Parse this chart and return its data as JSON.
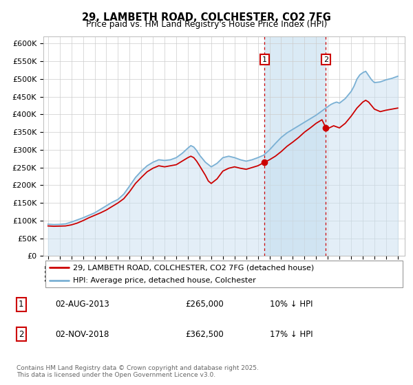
{
  "title": "29, LAMBETH ROAD, COLCHESTER, CO2 7FG",
  "subtitle": "Price paid vs. HM Land Registry's House Price Index (HPI)",
  "ylim": [
    0,
    620000
  ],
  "yticks": [
    0,
    50000,
    100000,
    150000,
    200000,
    250000,
    300000,
    350000,
    400000,
    450000,
    500000,
    550000,
    600000
  ],
  "sale1_date": 2013.58,
  "sale1_price": 265000,
  "sale2_date": 2018.83,
  "sale2_price": 362500,
  "hpi_color": "#7ab0d4",
  "hpi_fill_color": "#c8dff0",
  "price_color": "#cc0000",
  "shaded_color": "#daeaf5",
  "dashed_color": "#cc0000",
  "annotation_box_color": "#cc0000",
  "legend_label_price": "29, LAMBETH ROAD, COLCHESTER, CO2 7FG (detached house)",
  "legend_label_hpi": "HPI: Average price, detached house, Colchester",
  "table_row1": [
    "1",
    "02-AUG-2013",
    "£265,000",
    "10% ↓ HPI"
  ],
  "table_row2": [
    "2",
    "02-NOV-2018",
    "£362,500",
    "17% ↓ HPI"
  ],
  "footnote": "Contains HM Land Registry data © Crown copyright and database right 2025.\nThis data is licensed under the Open Government Licence v3.0.",
  "background_color": "#ffffff",
  "grid_color": "#cccccc",
  "hpi_points": {
    "1995.0": 90000,
    "1995.5": 89000,
    "1996.0": 89500,
    "1996.5": 91000,
    "1997.0": 96000,
    "1997.5": 102000,
    "1998.0": 108000,
    "1998.5": 115000,
    "1999.0": 122000,
    "1999.5": 132000,
    "2000.0": 142000,
    "2000.5": 152000,
    "2001.0": 160000,
    "2001.5": 175000,
    "2002.0": 198000,
    "2002.5": 222000,
    "2003.0": 240000,
    "2003.5": 255000,
    "2004.0": 265000,
    "2004.5": 272000,
    "2005.0": 270000,
    "2005.5": 272000,
    "2006.0": 278000,
    "2006.5": 290000,
    "2007.0": 305000,
    "2007.25": 312000,
    "2007.5": 308000,
    "2007.75": 298000,
    "2008.0": 285000,
    "2008.5": 265000,
    "2009.0": 252000,
    "2009.5": 262000,
    "2010.0": 278000,
    "2010.5": 282000,
    "2011.0": 278000,
    "2011.5": 272000,
    "2012.0": 268000,
    "2012.5": 272000,
    "2013.0": 278000,
    "2013.5": 285000,
    "2014.0": 300000,
    "2014.5": 318000,
    "2015.0": 335000,
    "2015.5": 348000,
    "2016.0": 358000,
    "2016.5": 368000,
    "2017.0": 378000,
    "2017.5": 388000,
    "2018.0": 398000,
    "2018.5": 410000,
    "2018.83": 418000,
    "2019.0": 422000,
    "2019.25": 428000,
    "2019.5": 432000,
    "2019.75": 435000,
    "2020.0": 432000,
    "2020.5": 445000,
    "2021.0": 465000,
    "2021.25": 480000,
    "2021.5": 500000,
    "2021.75": 512000,
    "2022.0": 518000,
    "2022.25": 522000,
    "2022.5": 510000,
    "2022.75": 498000,
    "2023.0": 490000,
    "2023.5": 492000,
    "2024.0": 498000,
    "2024.5": 502000,
    "2025.0": 508000
  },
  "price_points": {
    "1995.0": 85000,
    "1995.5": 84000,
    "1996.0": 84500,
    "1996.5": 85000,
    "1997.0": 88000,
    "1997.5": 93000,
    "1998.0": 100000,
    "1998.5": 108000,
    "1999.0": 115000,
    "1999.5": 122000,
    "2000.0": 130000,
    "2000.5": 140000,
    "2001.0": 150000,
    "2001.5": 162000,
    "2002.0": 182000,
    "2002.5": 205000,
    "2003.0": 222000,
    "2003.5": 238000,
    "2004.0": 248000,
    "2004.5": 255000,
    "2005.0": 252000,
    "2005.5": 255000,
    "2006.0": 258000,
    "2006.5": 268000,
    "2007.0": 278000,
    "2007.25": 282000,
    "2007.5": 278000,
    "2007.75": 268000,
    "2008.0": 255000,
    "2008.5": 228000,
    "2008.75": 212000,
    "2009.0": 205000,
    "2009.5": 218000,
    "2010.0": 240000,
    "2010.5": 248000,
    "2011.0": 252000,
    "2011.5": 248000,
    "2012.0": 245000,
    "2012.5": 250000,
    "2013.0": 255000,
    "2013.58": 265000,
    "2014.0": 272000,
    "2014.5": 282000,
    "2015.0": 295000,
    "2015.5": 310000,
    "2016.0": 322000,
    "2016.5": 335000,
    "2017.0": 350000,
    "2017.5": 362000,
    "2018.0": 375000,
    "2018.5": 385000,
    "2018.83": 362500,
    "2019.0": 360000,
    "2019.5": 368000,
    "2020.0": 362000,
    "2020.5": 375000,
    "2021.0": 395000,
    "2021.5": 418000,
    "2022.0": 435000,
    "2022.25": 440000,
    "2022.5": 435000,
    "2022.75": 425000,
    "2023.0": 415000,
    "2023.5": 408000,
    "2024.0": 412000,
    "2024.5": 415000,
    "2025.0": 418000
  }
}
